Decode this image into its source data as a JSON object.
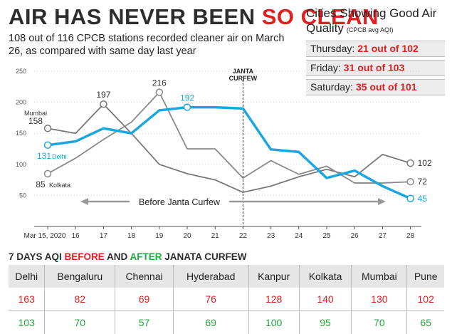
{
  "headline": {
    "part1": "AIR HAS NEVER BEEN ",
    "part2": "SO CLEAN"
  },
  "subhead": "108 out of 116 CPCB stations recorded cleaner air on March 26, as compared with same day last year",
  "box": {
    "title": "Cities Showing Good Air Quality",
    "subtitle": "(CPCB avg AQI)",
    "rows": [
      {
        "day": "Thursday:",
        "value": "21 out of 102"
      },
      {
        "day": "Friday:",
        "value": "31 out of 103"
      },
      {
        "day": "Saturday:",
        "value": "35 out of 101"
      }
    ]
  },
  "colors": {
    "delhi": "#1aa7e0",
    "mumbai": "#777777",
    "kolkata": "#8a8a8a",
    "red": "#e02020",
    "green": "#1fa83c"
  },
  "chart_data": {
    "type": "line",
    "x": [
      "Mar 15, 2020",
      "16",
      "17",
      "18",
      "19",
      "20",
      "21",
      "22",
      "23",
      "24",
      "25",
      "26",
      "27",
      "28"
    ],
    "ylim": [
      0,
      250
    ],
    "yticks": [
      50,
      100,
      150,
      200,
      250
    ],
    "series": [
      {
        "name": "Delhi",
        "color": "#1aa7e0",
        "values": [
          131,
          137,
          158,
          150,
          187,
          192,
          192,
          190,
          124,
          120,
          78,
          90,
          65,
          45
        ],
        "labels": [
          {
            "index": 0,
            "text": "131"
          },
          {
            "index": 5,
            "text": "192"
          },
          {
            "index": 13,
            "text": "45"
          }
        ]
      },
      {
        "name": "Mumbai",
        "color": "#777777",
        "values": [
          158,
          150,
          197,
          150,
          100,
          85,
          75,
          55,
          65,
          80,
          92,
          80,
          116,
          102
        ],
        "labels": [
          {
            "index": 0,
            "text": "158"
          },
          {
            "index": 2,
            "text": "197"
          },
          {
            "index": 13,
            "text": "102"
          }
        ]
      },
      {
        "name": "Kolkata",
        "color": "#8a8a8a",
        "values": [
          85,
          110,
          140,
          168,
          216,
          125,
          125,
          78,
          106,
          84,
          97,
          70,
          70,
          72
        ],
        "labels": [
          {
            "index": 0,
            "text": "85"
          },
          {
            "index": 4,
            "text": "216"
          },
          {
            "index": 13,
            "text": "72"
          }
        ]
      }
    ],
    "annotations": {
      "curfew_label": "JANTA CURFEW",
      "curfew_index": 7,
      "before_label": "Before Janta Curfew"
    }
  },
  "table": {
    "title_parts": [
      "7 DAYS AQI ",
      "BEFORE",
      " AND ",
      "AFTER",
      " JANATA CURFEW"
    ],
    "headers": [
      "Delhi",
      "Bengaluru",
      "Chennai",
      "Hyderabad",
      "Kanpur",
      "Kolkata",
      "Mumbai",
      "Pune"
    ],
    "before": [
      "163",
      "82",
      "69",
      "76",
      "128",
      "140",
      "130",
      "102"
    ],
    "after": [
      "103",
      "70",
      "57",
      "69",
      "100",
      "95",
      "70",
      "65"
    ]
  }
}
